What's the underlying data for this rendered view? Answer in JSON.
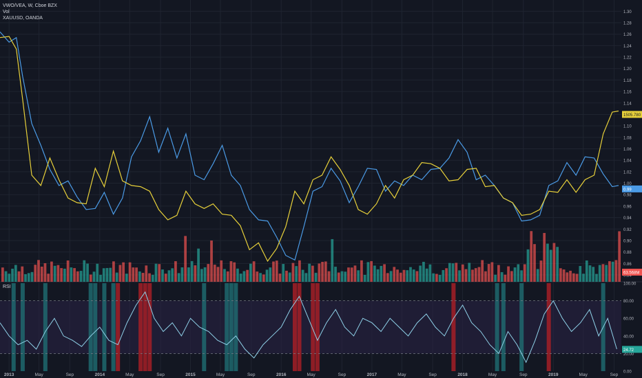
{
  "legend": {
    "symbol": "VWO/VEA, W, Cboe BZX",
    "volume": "Vol",
    "compare": "XAUUSD, OANDA"
  },
  "rsi_label": "RSI",
  "price_badges": {
    "gold": "1505.780",
    "ratio": "0.99",
    "volume": "63.568M",
    "rsi": "24.72"
  },
  "colors": {
    "background": "#131722",
    "grid": "#1f2430",
    "ratio_line": "#4b9be6",
    "gold_line": "#e8d13a",
    "vol_up": "#26a69a",
    "vol_down": "#ef5350",
    "rsi_line": "#8fd1e8",
    "rsi_band": "#2a2346",
    "rsi_teal_bar": "#1f6e73",
    "rsi_red_bar": "#a51f26"
  },
  "chart_data": [
    {
      "type": "line",
      "x_ticks": [
        "2013",
        "May",
        "Sep",
        "2014",
        "May",
        "Sep",
        "2015",
        "May",
        "Sep",
        "2016",
        "May",
        "Sep",
        "2017",
        "May",
        "Sep",
        "2018",
        "May",
        "Sep",
        "2019",
        "May",
        "Sep"
      ],
      "y_ticks": [
        "1.30",
        "1.28",
        "1.26",
        "1.24",
        "1.22",
        "1.20",
        "1.18",
        "1.16",
        "1.14",
        "1.12",
        "1.10",
        "1.08",
        "1.06",
        "1.04",
        "1.02",
        "1.00",
        "0.98",
        "0.96",
        "0.94",
        "0.92",
        "0.90",
        "0.88",
        "0.86",
        "0.84"
      ],
      "ylim": [
        0.84,
        1.31
      ],
      "xlim": [
        2012.9,
        2019.75
      ],
      "series": [
        {
          "name": "VWO/VEA, W, Cboe BZX",
          "x": [
            2012.9,
            2013.0,
            2013.08,
            2013.15,
            2013.25,
            2013.35,
            2013.45,
            2013.55,
            2013.65,
            2013.75,
            2013.85,
            2013.95,
            2014.05,
            2014.15,
            2014.25,
            2014.35,
            2014.45,
            2014.55,
            2014.65,
            2014.75,
            2014.85,
            2014.95,
            2015.05,
            2015.15,
            2015.25,
            2015.35,
            2015.45,
            2015.55,
            2015.65,
            2015.75,
            2015.85,
            2015.95,
            2016.05,
            2016.15,
            2016.25,
            2016.35,
            2016.45,
            2016.55,
            2016.65,
            2016.75,
            2016.85,
            2016.95,
            2017.05,
            2017.15,
            2017.25,
            2017.35,
            2017.45,
            2017.55,
            2017.65,
            2017.75,
            2017.85,
            2017.95,
            2018.05,
            2018.15,
            2018.25,
            2018.35,
            2018.45,
            2018.55,
            2018.65,
            2018.75,
            2018.85,
            2018.95,
            2019.05,
            2019.15,
            2019.25,
            2019.35,
            2019.45,
            2019.55,
            2019.65,
            2019.72
          ],
          "values": [
            1.27,
            1.24,
            1.26,
            1.18,
            1.11,
            1.06,
            1.03,
            0.99,
            1.01,
            0.97,
            0.96,
            0.95,
            0.99,
            0.94,
            0.98,
            1.04,
            1.08,
            1.11,
            1.06,
            1.09,
            1.05,
            1.08,
            1.02,
            1.0,
            1.04,
            1.06,
            1.02,
            0.99,
            0.96,
            0.93,
            0.94,
            0.9,
            0.88,
            0.86,
            0.93,
            0.98,
            1.0,
            1.02,
            1.01,
            0.96,
            1.0,
            1.02,
            1.03,
            0.98,
            1.01,
            0.99,
            1.02,
            1.0,
            1.03,
            1.02,
            1.05,
            1.07,
            1.06,
            1.0,
            1.02,
            0.99,
            0.98,
            0.96,
            0.94,
            0.93,
            0.95,
            0.99,
            1.01,
            1.03,
            1.02,
            1.04,
            1.05,
            1.01,
            1.0,
            0.99
          ]
        },
        {
          "name": "XAUUSD, OANDA",
          "x": [
            2012.9,
            2013.0,
            2013.08,
            2013.15,
            2013.25,
            2013.35,
            2013.45,
            2013.55,
            2013.65,
            2013.75,
            2013.85,
            2013.95,
            2014.05,
            2014.15,
            2014.25,
            2014.35,
            2014.45,
            2014.55,
            2014.65,
            2014.75,
            2014.85,
            2014.95,
            2015.05,
            2015.15,
            2015.25,
            2015.35,
            2015.45,
            2015.55,
            2015.65,
            2015.75,
            2015.85,
            2015.95,
            2016.05,
            2016.15,
            2016.25,
            2016.35,
            2016.45,
            2016.55,
            2016.65,
            2016.75,
            2016.85,
            2016.95,
            2017.05,
            2017.15,
            2017.25,
            2017.35,
            2017.45,
            2017.55,
            2017.65,
            2017.75,
            2017.85,
            2017.95,
            2018.05,
            2018.15,
            2018.25,
            2018.35,
            2018.45,
            2018.55,
            2018.65,
            2018.75,
            2018.85,
            2018.95,
            2019.05,
            2019.15,
            2019.25,
            2019.35,
            2019.45,
            2019.55,
            2019.65,
            2019.72
          ],
          "values": [
            1.26,
            1.25,
            1.24,
            1.14,
            1.02,
            0.99,
            1.05,
            1.0,
            0.98,
            0.96,
            0.97,
            1.02,
            1.0,
            1.05,
            1.01,
            0.99,
            1.0,
            0.98,
            0.96,
            0.93,
            0.95,
            0.98,
            0.97,
            0.95,
            0.97,
            0.94,
            0.95,
            0.92,
            0.89,
            0.89,
            0.87,
            0.88,
            0.93,
            0.98,
            0.97,
            1.0,
            1.02,
            1.04,
            1.03,
            0.99,
            0.96,
            0.94,
            0.97,
            0.99,
            0.98,
            1.0,
            1.02,
            1.03,
            1.04,
            1.02,
            1.01,
            1.0,
            1.03,
            1.02,
            1.0,
            0.99,
            0.98,
            0.96,
            0.95,
            0.94,
            0.96,
            0.98,
            0.99,
            1.0,
            0.99,
            1.0,
            1.02,
            1.08,
            1.13,
            1.12
          ]
        }
      ]
    },
    {
      "type": "bar",
      "name": "Vol",
      "note_values": "relative weekly volume, 0-1 scale",
      "pattern_count": 190
    },
    {
      "type": "line",
      "name": "RSI",
      "y_ticks": [
        "100.00",
        "80.00",
        "60.00",
        "40.00",
        "20.00",
        "0.00"
      ],
      "ylim": [
        0,
        100
      ],
      "bands": [
        80,
        20
      ],
      "x": [
        2012.9,
        2013.0,
        2013.1,
        2013.2,
        2013.3,
        2013.4,
        2013.5,
        2013.6,
        2013.7,
        2013.8,
        2013.9,
        2014.0,
        2014.1,
        2014.2,
        2014.3,
        2014.4,
        2014.5,
        2014.6,
        2014.7,
        2014.8,
        2014.9,
        2015.0,
        2015.1,
        2015.2,
        2015.3,
        2015.4,
        2015.5,
        2015.6,
        2015.7,
        2015.8,
        2015.9,
        2016.0,
        2016.1,
        2016.2,
        2016.3,
        2016.4,
        2016.5,
        2016.6,
        2016.7,
        2016.8,
        2016.9,
        2017.0,
        2017.1,
        2017.2,
        2017.3,
        2017.4,
        2017.5,
        2017.6,
        2017.7,
        2017.8,
        2017.9,
        2018.0,
        2018.1,
        2018.2,
        2018.3,
        2018.4,
        2018.5,
        2018.6,
        2018.7,
        2018.8,
        2018.9,
        2019.0,
        2019.1,
        2019.2,
        2019.3,
        2019.4,
        2019.5,
        2019.6,
        2019.7
      ],
      "values": [
        55,
        40,
        30,
        35,
        25,
        45,
        60,
        40,
        35,
        28,
        40,
        50,
        35,
        30,
        55,
        75,
        90,
        60,
        45,
        55,
        40,
        60,
        50,
        45,
        35,
        30,
        40,
        25,
        15,
        30,
        40,
        50,
        70,
        85,
        60,
        35,
        55,
        70,
        50,
        40,
        60,
        55,
        45,
        60,
        50,
        40,
        55,
        65,
        50,
        40,
        60,
        75,
        55,
        45,
        30,
        20,
        45,
        30,
        10,
        35,
        65,
        80,
        60,
        45,
        55,
        70,
        40,
        60,
        25
      ]
    }
  ]
}
